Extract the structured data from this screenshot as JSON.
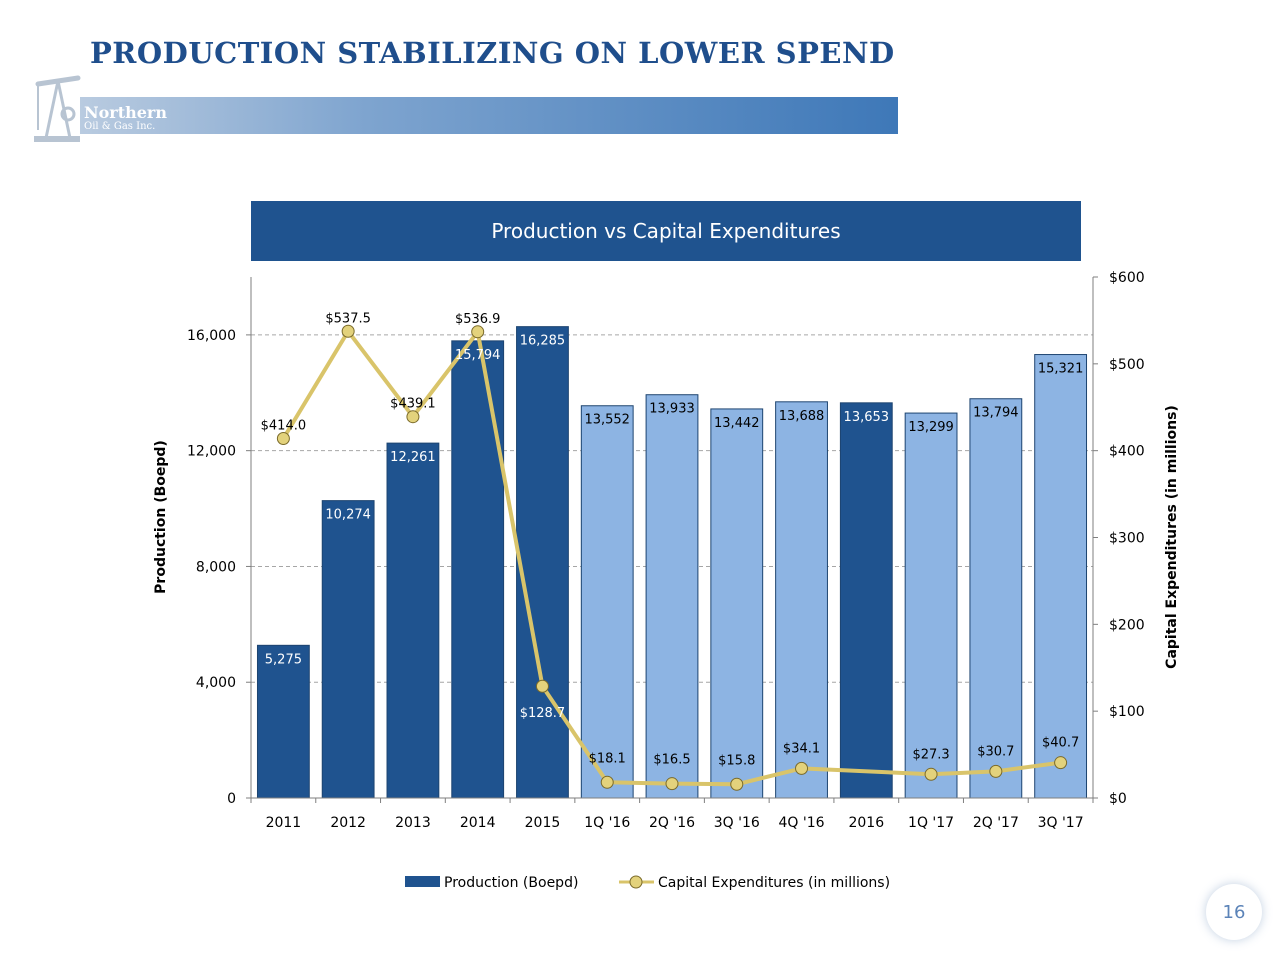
{
  "slide": {
    "title": "PRODUCTION STABILIZING ON LOWER SPEND",
    "page_number": "16"
  },
  "logo": {
    "name_line1": "Northern",
    "name_line2": "Oil & Gas Inc."
  },
  "colors": {
    "title": "#1f4e8c",
    "bar_dark": "#1f538f",
    "bar_light": "#8db4e3",
    "line": "#d9c46a",
    "marker": "#e3d27c"
  },
  "chart_data": {
    "type": "bar",
    "title": "Production vs Capital Expenditures",
    "categories": [
      "2011",
      "2012",
      "2013",
      "2014",
      "2015",
      "1Q '16",
      "2Q '16",
      "3Q '16",
      "4Q '16",
      "2016",
      "1Q '17",
      "2Q '17",
      "3Q '17"
    ],
    "series": [
      {
        "name": "Production (Boepd)",
        "type": "bar",
        "axis": "left",
        "values": [
          5275,
          10274,
          12261,
          15794,
          16285,
          13552,
          13933,
          13442,
          13688,
          13653,
          13299,
          13794,
          15321
        ],
        "labels": [
          "5,275",
          "10,274",
          "12,261",
          "15,794",
          "16,285",
          "13,552",
          "13,933",
          "13,442",
          "13,688",
          "13,653",
          "13,299",
          "13,794",
          "15,321"
        ],
        "styles": [
          "dark",
          "dark",
          "dark",
          "dark",
          "dark",
          "light",
          "light",
          "light",
          "light",
          "dark",
          "light",
          "light",
          "light"
        ]
      },
      {
        "name": "Capital Expenditures (in millions)",
        "type": "line",
        "axis": "right",
        "values": [
          414.0,
          537.5,
          439.1,
          536.9,
          128.7,
          18.1,
          16.5,
          15.8,
          34.1,
          null,
          27.3,
          30.7,
          40.7
        ],
        "labels": [
          "$414.0",
          "$537.5",
          "$439.1",
          "$536.9",
          "$128.7",
          "$18.1",
          "$16.5",
          "$15.8",
          "$34.1",
          null,
          "$27.3",
          "$30.7",
          "$40.7"
        ]
      }
    ],
    "ylabel": "Production (Boepd)",
    "y2label": "Capital Expenditures (in millions)",
    "ylim": [
      0,
      18000
    ],
    "y2lim": [
      0,
      600
    ],
    "yticks": [
      0,
      4000,
      8000,
      12000,
      16000
    ],
    "ytick_labels": [
      "0",
      "4,000",
      "8,000",
      "12,000",
      "16,000"
    ],
    "y2ticks": [
      0,
      100,
      200,
      300,
      400,
      500,
      600
    ],
    "y2tick_labels": [
      "$0",
      "$100",
      "$200",
      "$300",
      "$400",
      "$500",
      "$600"
    ],
    "grid": true,
    "legend": "bottom"
  }
}
